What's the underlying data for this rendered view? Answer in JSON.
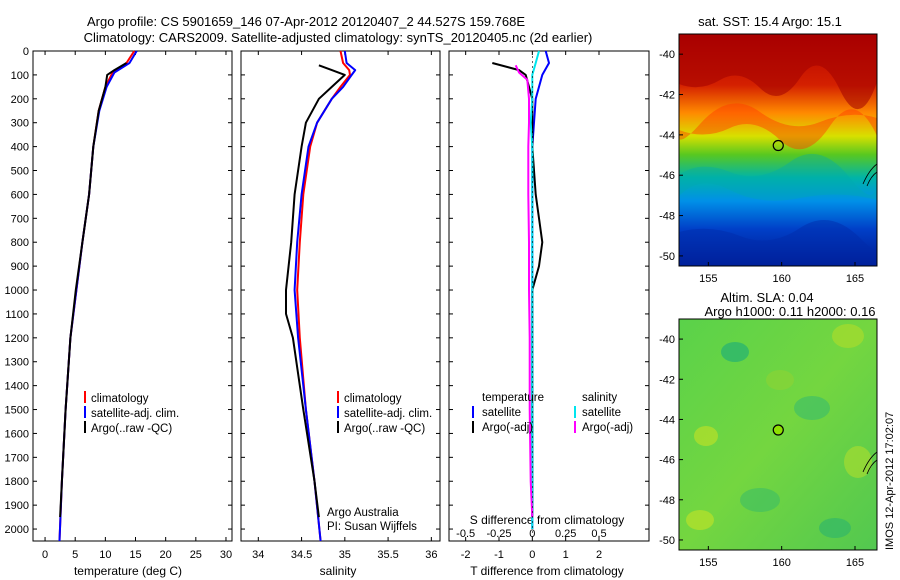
{
  "title_line1": "Argo profile: CS 5901659_146 07-Apr-2012 20120407_2 44.527S 159.768E",
  "title_line2": "Climatology: CARS2009. Satellite-adjusted climatology: synTS_20120405.nc (2d earlier)",
  "colors": {
    "climatology": "#ff0000",
    "satellite": "#0000ff",
    "argo": "#000000",
    "salinity_satellite": "#00e5ee",
    "salinity_argo": "#ff00ff"
  },
  "depth_ticks": [
    "0",
    "100",
    "200",
    "300",
    "400",
    "500",
    "600",
    "700",
    "800",
    "900",
    "1000",
    "1100",
    "1200",
    "1300",
    "1400",
    "1500",
    "1600",
    "1700",
    "1800",
    "1900",
    "2000"
  ],
  "chart_data": [
    {
      "type": "line",
      "panel": "temperature",
      "xlabel": "temperature (deg C)",
      "xlim": [
        -2,
        31
      ],
      "ylim": [
        0,
        2050
      ],
      "y_reversed": true,
      "x_ticks": [
        "0",
        "5",
        "10",
        "15",
        "20",
        "25",
        "30"
      ],
      "x_tick_values": [
        0,
        5,
        10,
        15,
        20,
        25,
        30
      ],
      "legend": [
        "climatology",
        "satellite-adj. clim.",
        "Argo(..raw -QC)"
      ],
      "legend_position": "lower-right",
      "series": [
        {
          "name": "climatology",
          "color": "#ff0000",
          "depth": [
            0,
            50,
            90,
            150,
            250,
            400,
            600,
            800,
            1000,
            1200,
            1500,
            1800,
            2050
          ],
          "values": [
            14.8,
            13.5,
            11.2,
            10.0,
            8.9,
            8.0,
            7.3,
            6.2,
            5.2,
            4.2,
            3.4,
            2.8,
            2.4
          ]
        },
        {
          "name": "satellite-adj. clim.",
          "color": "#0000ff",
          "depth": [
            0,
            50,
            90,
            150,
            250,
            400,
            600,
            800,
            1000,
            1200,
            1500,
            1800,
            2050
          ],
          "values": [
            15.2,
            14.0,
            11.5,
            10.2,
            9.0,
            8.0,
            7.3,
            6.2,
            5.2,
            4.2,
            3.4,
            2.8,
            2.4
          ]
        },
        {
          "name": "Argo(..raw -QC)",
          "color": "#000000",
          "depth": [
            50,
            80,
            100,
            150,
            250,
            400,
            600,
            800,
            1000,
            1200,
            1500,
            1800,
            1950
          ],
          "values": [
            13.5,
            11.5,
            10.3,
            10.0,
            8.9,
            8.0,
            7.3,
            6.2,
            5.1,
            4.2,
            3.4,
            2.8,
            2.5
          ]
        }
      ]
    },
    {
      "type": "line",
      "panel": "salinity",
      "xlabel": "salinity",
      "xlim": [
        33.8,
        36.1
      ],
      "ylim": [
        0,
        2050
      ],
      "y_reversed": true,
      "x_ticks": [
        "34",
        "34.5",
        "35",
        "35.5",
        "36"
      ],
      "x_tick_values": [
        34,
        34.5,
        35,
        35.5,
        36
      ],
      "legend": [
        "climatology",
        "satellite-adj. clim.",
        "Argo(..raw -QC)"
      ],
      "legend_position": "lower-right",
      "annotation_line1": "Argo Australia",
      "annotation_line2": "PI: Susan Wijffels",
      "series": [
        {
          "name": "climatology",
          "color": "#ff0000",
          "depth": [
            0,
            50,
            80,
            100,
            150,
            200,
            300,
            400,
            600,
            800,
            1000,
            1200,
            1500,
            1800,
            2050
          ],
          "values": [
            34.95,
            34.98,
            35.05,
            35.06,
            34.95,
            34.85,
            34.68,
            34.6,
            34.52,
            34.48,
            34.45,
            34.48,
            34.55,
            34.65,
            34.72
          ]
        },
        {
          "name": "satellite-adj. clim.",
          "color": "#0000ff",
          "depth": [
            0,
            50,
            80,
            100,
            150,
            200,
            300,
            400,
            600,
            800,
            1000,
            1200,
            1500,
            1800,
            2050
          ],
          "values": [
            35.0,
            35.02,
            35.12,
            35.08,
            34.98,
            34.85,
            34.68,
            34.58,
            34.5,
            34.45,
            34.42,
            34.46,
            34.55,
            34.65,
            34.72
          ]
        },
        {
          "name": "Argo(..raw -QC)",
          "color": "#000000",
          "depth": [
            60,
            80,
            100,
            150,
            200,
            300,
            400,
            600,
            800,
            1000,
            1100,
            1200,
            1500,
            1800,
            1950
          ],
          "values": [
            34.7,
            34.85,
            35.0,
            34.85,
            34.7,
            34.55,
            34.5,
            34.42,
            34.38,
            34.32,
            34.32,
            34.4,
            34.52,
            34.65,
            34.7
          ]
        }
      ]
    },
    {
      "type": "line",
      "panel": "differences",
      "xlabel_top": "S difference from climatology",
      "xlabel": "T difference from climatology",
      "xlim": [
        -2.5,
        3.5
      ],
      "ylim": [
        0,
        2050
      ],
      "y_reversed": true,
      "x_ticks_bottom": [
        "-2",
        "-1",
        "0",
        "1",
        "2"
      ],
      "x_ticks_bottom_values": [
        -2,
        -1,
        0,
        1,
        2
      ],
      "x_ticks_top": [
        "-0.5",
        "-0.25",
        "0",
        "0.25",
        "0.5"
      ],
      "x_ticks_top_values": [
        -0.5,
        -0.25,
        0,
        0.25,
        0.5
      ],
      "legend_temperature_title": "temperature",
      "legend_salinity_title": "salinity",
      "legend_temperature": [
        "satellite",
        "Argo(-adj)"
      ],
      "legend_salinity": [
        "satellite",
        "Argo(-adj)"
      ],
      "series": [
        {
          "name": "satellite",
          "color": "#0000ff",
          "depth": [
            0,
            50,
            100,
            200,
            400,
            600,
            800,
            1000,
            1500,
            2000
          ],
          "values": [
            0.4,
            0.5,
            0.3,
            0.1,
            0.0,
            0.0,
            0.0,
            0.0,
            0.0,
            0.0
          ]
        },
        {
          "name": "Argo(-adj)",
          "color": "#000000",
          "depth": [
            50,
            80,
            100,
            200,
            400,
            600,
            700,
            800,
            900,
            1000,
            1500,
            1950
          ],
          "values": [
            -1.2,
            -0.4,
            -0.2,
            0.0,
            0.0,
            0.1,
            0.2,
            0.3,
            0.2,
            0.0,
            0.0,
            0.0
          ]
        },
        {
          "name": "satellite",
          "color": "#00e5ee",
          "depth": [
            0,
            50,
            100,
            200,
            300,
            400,
            600,
            800,
            1000,
            1500,
            2000
          ],
          "values": [
            0.2,
            0.1,
            0.0,
            0.0,
            -0.05,
            0.0,
            0.0,
            0.0,
            0.0,
            0.0,
            0.0
          ]
        },
        {
          "name": "Argo(-adj)",
          "color": "#ff00ff",
          "depth": [
            60,
            90,
            120,
            200,
            300,
            400,
            600,
            800,
            1000,
            1200,
            1500,
            1800,
            1950
          ],
          "values": [
            -0.5,
            -0.4,
            -0.15,
            -0.1,
            -0.1,
            -0.12,
            -0.12,
            -0.1,
            -0.1,
            -0.08,
            -0.08,
            -0.05,
            0.0
          ]
        }
      ]
    },
    {
      "type": "heatmap",
      "panel": "sst_map",
      "title": "sat. SST: 15.4 Argo: 15.1",
      "xlim": [
        153,
        166.5
      ],
      "ylim": [
        -50.5,
        -39
      ],
      "x_ticks": [
        "155",
        "160",
        "165"
      ],
      "x_tick_values": [
        155,
        160,
        165
      ],
      "y_ticks": [
        "-40",
        "-42",
        "-44",
        "-46",
        "-48",
        "-50"
      ],
      "y_tick_values": [
        -40,
        -42,
        -44,
        -46,
        -48,
        -50
      ],
      "marker": {
        "lon": 159.768,
        "lat": -44.527
      }
    },
    {
      "type": "heatmap",
      "panel": "sla_map",
      "title_line1": "Altim. SLA: 0.04",
      "title_line2": "Argo h1000: 0.11 h2000: 0.16",
      "xlim": [
        153,
        166.5
      ],
      "ylim": [
        -50.5,
        -39
      ],
      "x_ticks": [
        "155",
        "160",
        "165"
      ],
      "x_tick_values": [
        155,
        160,
        165
      ],
      "y_ticks": [
        "-40",
        "-42",
        "-44",
        "-46",
        "-48",
        "-50"
      ],
      "y_tick_values": [
        -40,
        -42,
        -44,
        -46,
        -48,
        -50
      ],
      "marker": {
        "lon": 159.768,
        "lat": -44.527
      }
    }
  ],
  "footer": "IMOS 12-Apr-2012 17:02:07"
}
